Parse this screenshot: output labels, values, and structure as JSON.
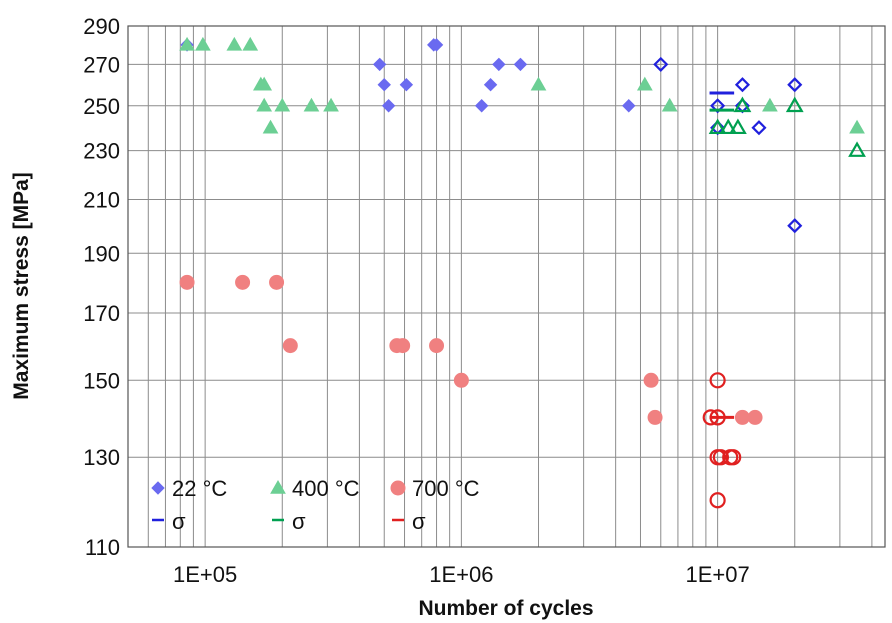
{
  "chart_data": {
    "type": "scatter",
    "xlabel": "Number of cycles",
    "ylabel": "Maximum stress [MPa]",
    "x_scale": "log",
    "y_scale": "log",
    "xlim": [
      50000,
      45000000
    ],
    "ylim": [
      110,
      290
    ],
    "grid": true,
    "legend_position": "bottom-left",
    "x_tick_labels": [
      {
        "value": 100000,
        "label": "1E+05"
      },
      {
        "value": 1000000,
        "label": "1E+06"
      },
      {
        "value": 10000000,
        "label": "1E+07"
      }
    ],
    "y_ticks": [
      110,
      130,
      150,
      170,
      190,
      210,
      230,
      250,
      270,
      290
    ],
    "series": [
      {
        "name": "22 °C",
        "color": "#2020dd",
        "marker": "diamond",
        "filled_color": "#6a6af0",
        "failures": [
          [
            85000,
            280
          ],
          [
            480000,
            270
          ],
          [
            500000,
            260
          ],
          [
            520000,
            250
          ],
          [
            610000,
            260
          ],
          [
            780000,
            280
          ],
          [
            800000,
            280
          ],
          [
            1200000,
            250
          ],
          [
            1300000,
            260
          ],
          [
            1400000,
            270
          ],
          [
            1700000,
            270
          ],
          [
            4500000,
            250
          ]
        ],
        "runouts": [
          [
            6000000,
            270
          ],
          [
            10000000,
            250
          ],
          [
            10000000,
            240
          ],
          [
            12500000,
            250
          ],
          [
            12500000,
            260
          ],
          [
            14500000,
            240
          ],
          [
            20000000,
            260
          ],
          [
            20000000,
            200
          ]
        ],
        "sigma": {
          "x_from": 9300000,
          "x_to": 11600000,
          "y": 256
        }
      },
      {
        "name": "400 °C",
        "color": "#00a050",
        "marker": "triangle",
        "filled_color": "#6ccf94",
        "failures": [
          [
            85000,
            280
          ],
          [
            98000,
            280
          ],
          [
            130000,
            280
          ],
          [
            150000,
            280
          ],
          [
            165000,
            260
          ],
          [
            170000,
            260
          ],
          [
            170000,
            250
          ],
          [
            180000,
            240
          ],
          [
            200000,
            250
          ],
          [
            260000,
            250
          ],
          [
            310000,
            250
          ],
          [
            2000000,
            260
          ],
          [
            5200000,
            260
          ],
          [
            6500000,
            250
          ],
          [
            16000000,
            250
          ],
          [
            35000000,
            240
          ]
        ],
        "runouts": [
          [
            10000000,
            240
          ],
          [
            11000000,
            240
          ],
          [
            12000000,
            240
          ],
          [
            12500000,
            250
          ],
          [
            20000000,
            250
          ],
          [
            35000000,
            230
          ]
        ],
        "sigma": {
          "x_from": 9300000,
          "x_to": 11600000,
          "y": 248
        }
      },
      {
        "name": "700 °C",
        "color": "#e02020",
        "marker": "circle",
        "filled_color": "#f08080",
        "failures": [
          [
            85000,
            180
          ],
          [
            140000,
            180
          ],
          [
            190000,
            180
          ],
          [
            215000,
            160
          ],
          [
            560000,
            160
          ],
          [
            590000,
            160
          ],
          [
            800000,
            160
          ],
          [
            1000000,
            150
          ],
          [
            5500000,
            150
          ],
          [
            5700000,
            140
          ],
          [
            12500000,
            140
          ],
          [
            14000000,
            140
          ]
        ],
        "runouts": [
          [
            10000000,
            150
          ],
          [
            10000000,
            140
          ],
          [
            9400000,
            140
          ],
          [
            10000000,
            130
          ],
          [
            10300000,
            130
          ],
          [
            11200000,
            130
          ],
          [
            11500000,
            130
          ],
          [
            10000000,
            120
          ]
        ],
        "sigma": {
          "x_from": 9300000,
          "x_to": 11600000,
          "y": 140
        }
      }
    ],
    "legend": {
      "row1": [
        "22 °C",
        "400 °C",
        "700 °C"
      ],
      "row2": [
        "σ",
        "σ",
        "σ"
      ]
    }
  }
}
